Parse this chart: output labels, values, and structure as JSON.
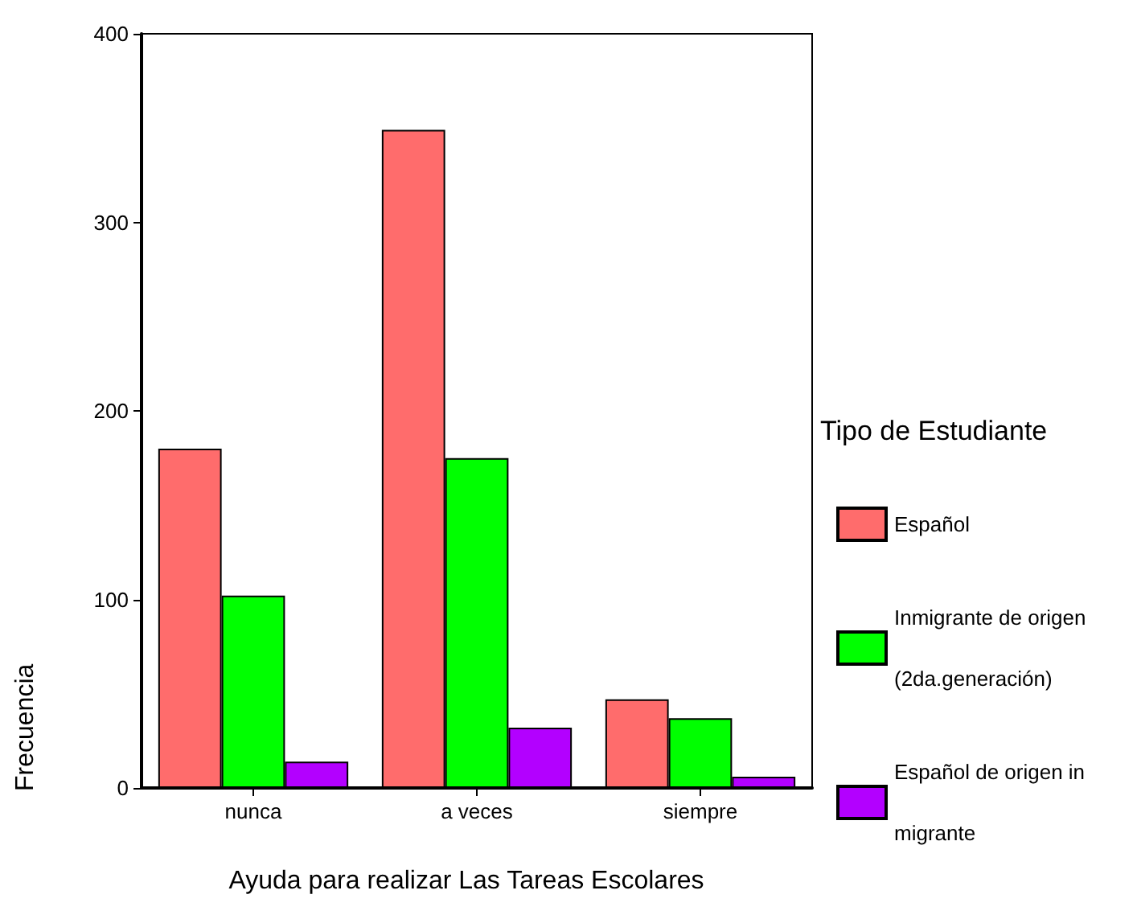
{
  "chart_data": {
    "type": "bar",
    "xlabel": "Ayuda para realizar Las Tareas Escolares",
    "ylabel": "Frecuencia",
    "legend_title": "Tipo de Estudiante",
    "categories": [
      "nunca",
      "a veces",
      "siempre"
    ],
    "series": [
      {
        "name": "Español",
        "color": "#ff6c6c",
        "values": [
          180,
          349,
          47
        ]
      },
      {
        "name": "Inmigrante de origen (2da.generación)",
        "color": "#00ff00",
        "values": [
          102,
          175,
          37
        ]
      },
      {
        "name": "Español de origen in migrante",
        "color": "#b300ff",
        "values": [
          14,
          32,
          6
        ]
      }
    ],
    "ylim": [
      0,
      400
    ],
    "yticks": [
      0,
      100,
      200,
      300,
      400
    ],
    "grid": false,
    "legend": "right"
  }
}
